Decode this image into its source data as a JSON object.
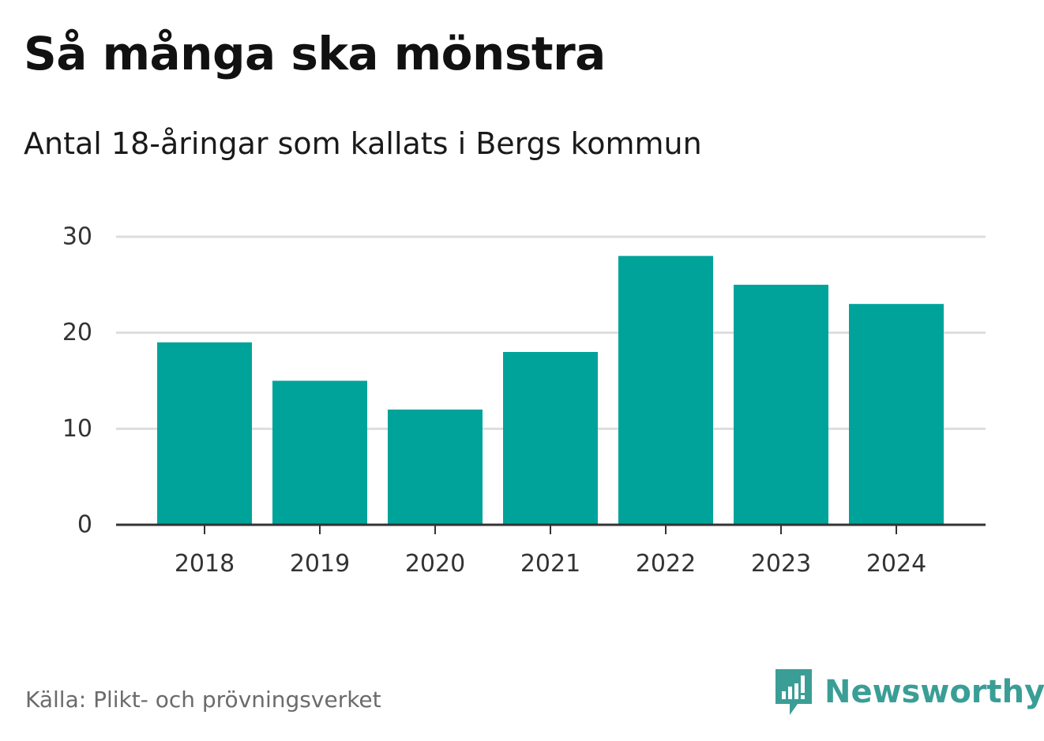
{
  "header": {
    "title": "Så många ska mönstra",
    "subtitle": "Antal 18-åringar som kallats i Bergs kommun"
  },
  "footer": {
    "source": "Källa: Plikt- och prövningsverket",
    "brand": "Newsworthy",
    "brand_icon": "newsworthy-logo-icon"
  },
  "colors": {
    "bar": "#00a39a",
    "grid": "#dddddd",
    "axis": "#333333",
    "brand": "#3a9e96"
  },
  "chart_data": {
    "type": "bar",
    "title": "Så många ska mönstra",
    "subtitle": "Antal 18-åringar som kallats i Bergs kommun",
    "categories": [
      "2018",
      "2019",
      "2020",
      "2021",
      "2022",
      "2023",
      "2024"
    ],
    "values": [
      19,
      15,
      12,
      18,
      28,
      25,
      23
    ],
    "yticks": [
      "0",
      "10",
      "20",
      "30"
    ],
    "ylim": [
      0,
      30
    ],
    "xlabel": "",
    "ylabel": "",
    "grid": true,
    "legend": "none"
  }
}
